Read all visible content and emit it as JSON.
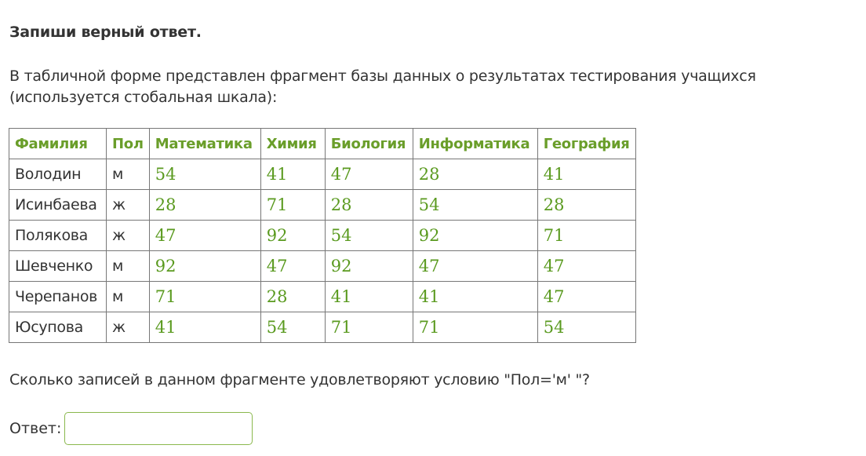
{
  "title": "Запиши верный ответ.",
  "intro": "В табличной форме представлен фрагмент базы данных о результатах тестирования учащихся (используется стобальная шкала):",
  "table": {
    "headers": [
      "Фамилия",
      "Пол",
      "Математика",
      "Химия",
      "Биология",
      "Информатика",
      "География"
    ],
    "rows": [
      [
        "Володин",
        "м",
        "54",
        "41",
        "47",
        "28",
        "41"
      ],
      [
        "Исинбаева",
        "ж",
        "28",
        "71",
        "28",
        "54",
        "28"
      ],
      [
        "Полякова",
        "ж",
        "47",
        "92",
        "54",
        "92",
        "71"
      ],
      [
        "Шевченко",
        "м",
        "92",
        "47",
        "92",
        "47",
        "47"
      ],
      [
        "Черепанов",
        "м",
        "71",
        "28",
        "41",
        "41",
        "47"
      ],
      [
        "Юсупова",
        "ж",
        "41",
        "54",
        "71",
        "71",
        "54"
      ]
    ]
  },
  "question": "Сколько записей в данном фрагменте удовлетворяют условию \"Пол='м' \"?",
  "answer": {
    "label": "Ответ:",
    "value": "",
    "placeholder": ""
  },
  "colors": {
    "accent_green": "#6a9e2a",
    "text": "#333333",
    "border": "#777777"
  }
}
